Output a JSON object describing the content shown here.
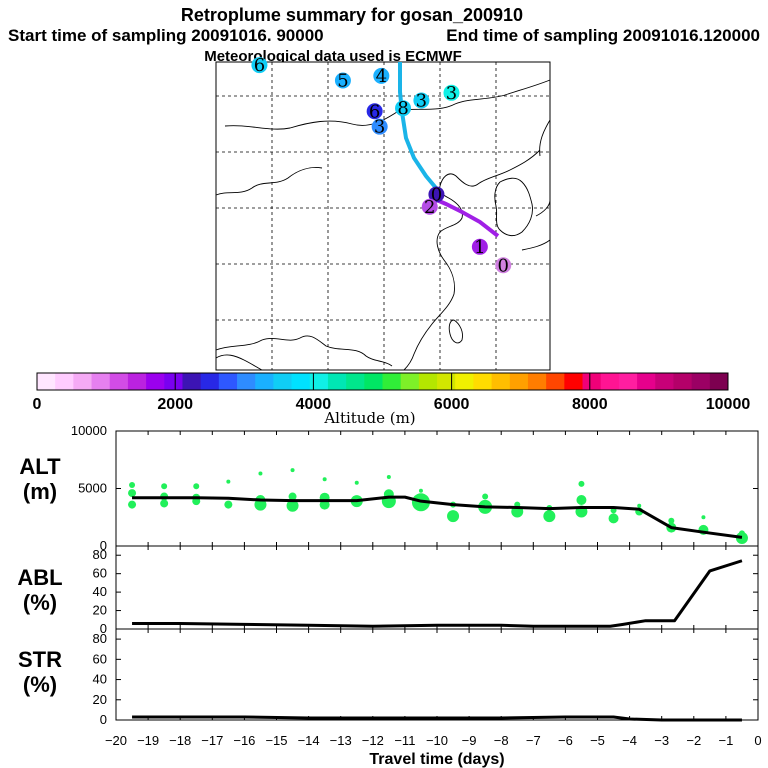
{
  "header": {
    "title": "Retroplume summary for gosan_200910",
    "start_time": "Start time of sampling 20091016. 90000",
    "end_time": "End time of sampling 20091016.120000",
    "met_data": "Meteorological data used is ECMWF"
  },
  "colorbar": {
    "colors": [
      "#ffe6ff",
      "#ffccff",
      "#f5aaf5",
      "#e680f0",
      "#d24ce6",
      "#bb22e0",
      "#9b00ee",
      "#7a00f0",
      "#3c14b4",
      "#2828e6",
      "#2e58ff",
      "#2e8cff",
      "#1ab0ff",
      "#10cdf5",
      "#00e1ff",
      "#10f0e6",
      "#00e6b4",
      "#00e68c",
      "#00e664",
      "#30ee38",
      "#7ef028",
      "#b4e600",
      "#d2e600",
      "#f0f000",
      "#ffdc00",
      "#ffbe00",
      "#ffa000",
      "#ff7d00",
      "#ff4600",
      "#ff0000",
      "#f00078",
      "#ff1493",
      "#ff1ea0",
      "#e6008c",
      "#c80078",
      "#b40069",
      "#9b0064",
      "#7d0050"
    ],
    "tick_labels": [
      "0",
      "2000",
      "4000",
      "6000",
      "8000",
      "10000"
    ],
    "tick_values": [
      0,
      2000,
      4000,
      6000,
      8000,
      10000
    ],
    "label": "Altitude (m)"
  },
  "map": {
    "track_upper_color": "#1ab4e8",
    "track_lower_color": "#a020e6",
    "markers": [
      {
        "label": "5",
        "lon": 0.38,
        "lat": 0.06,
        "color": "#1ab0ff"
      },
      {
        "label": "4",
        "lon": 0.495,
        "lat": 0.045,
        "color": "#1ab0ff"
      },
      {
        "label": "8",
        "lon": 0.56,
        "lat": 0.15,
        "color": "#10cdf5"
      },
      {
        "label": "3",
        "lon": 0.615,
        "lat": 0.125,
        "color": "#10cdf5"
      },
      {
        "label": "3",
        "lon": 0.705,
        "lat": 0.1,
        "color": "#10f0e6"
      },
      {
        "label": "6",
        "lon": 0.475,
        "lat": 0.16,
        "color": "#2828e6"
      },
      {
        "label": "3",
        "lon": 0.49,
        "lat": 0.21,
        "color": "#2e8cff"
      },
      {
        "label": "0",
        "lon": 0.66,
        "lat": 0.43,
        "color": "#3c14b4"
      },
      {
        "label": "2",
        "lon": 0.64,
        "lat": 0.47,
        "color": "#b44ce6"
      },
      {
        "label": "1",
        "lon": 0.79,
        "lat": 0.6,
        "color": "#a020e6"
      },
      {
        "label": "0",
        "lon": 0.86,
        "lat": 0.66,
        "color": "#d080e0"
      },
      {
        "label": "6",
        "lon": 0.13,
        "lat": 0.01,
        "color": "#10cdf5"
      }
    ]
  },
  "panels": {
    "alt": {
      "label_top": "ALT",
      "label_bottom": "(m)",
      "yticks": [
        "10000",
        "5000",
        "0"
      ],
      "ytick_values": [
        10000,
        5000,
        0
      ]
    },
    "abl": {
      "label_top": "ABL",
      "label_bottom": "(%)",
      "yticks": [
        "80",
        "60",
        "40",
        "20",
        "0"
      ],
      "ytick_values": [
        80,
        60,
        40,
        20,
        0
      ]
    },
    "str": {
      "label_top": "STR",
      "label_bottom": "(%)",
      "yticks": [
        "80",
        "60",
        "40",
        "20",
        "0"
      ],
      "ytick_values": [
        80,
        60,
        40,
        20,
        0
      ]
    }
  },
  "xaxis": {
    "label": "Travel time (days)",
    "tick_labels": [
      "−20",
      "−19",
      "−18",
      "−17",
      "−16",
      "−15",
      "−14",
      "−13",
      "−12",
      "−11",
      "−10",
      "−9",
      "−8",
      "−7",
      "−6",
      "−5",
      "−4",
      "−3",
      "−2",
      "−1",
      "0"
    ],
    "tick_values": [
      -20,
      -19,
      -18,
      -17,
      -16,
      -15,
      -14,
      -13,
      -12,
      -11,
      -10,
      -9,
      -8,
      -7,
      -6,
      -5,
      -4,
      -3,
      -2,
      -1,
      0
    ]
  },
  "chart_data": [
    {
      "type": "line",
      "title": "ALT",
      "ylabel": "ALT (m)",
      "xlabel": "Travel time (days)",
      "xlim": [
        -20,
        0
      ],
      "ylim": [
        0,
        10000
      ],
      "series": [
        {
          "name": "mean altitude",
          "x": [
            -19.5,
            -18.5,
            -17.5,
            -16.5,
            -15.5,
            -14.5,
            -13.5,
            -12.5,
            -11.5,
            -11,
            -10.5,
            -9.5,
            -8.5,
            -7.5,
            -6.5,
            -5.5,
            -4.5,
            -3.7,
            -2.7,
            -1.7,
            -0.5
          ],
          "y": [
            4200,
            4200,
            4200,
            4150,
            4000,
            3950,
            3950,
            3950,
            4250,
            4250,
            3900,
            3600,
            3400,
            3350,
            3250,
            3350,
            3350,
            3200,
            1600,
            1200,
            750
          ]
        }
      ],
      "scatter": {
        "name": "particle clusters",
        "x": [
          -19.5,
          -19.5,
          -19.5,
          -18.5,
          -18.5,
          -18.5,
          -17.5,
          -17.5,
          -17.5,
          -16.5,
          -16.5,
          -15.5,
          -15.5,
          -15.5,
          -14.5,
          -14.5,
          -14.5,
          -13.5,
          -13.5,
          -13.5,
          -12.5,
          -12.5,
          -11.5,
          -11.5,
          -11.5,
          -10.5,
          -10.5,
          -9.5,
          -9.5,
          -8.5,
          -8.5,
          -7.5,
          -7.5,
          -6.5,
          -6.5,
          -5.5,
          -5.5,
          -5.5,
          -4.5,
          -4.5,
          -3.7,
          -3.7,
          -2.7,
          -2.7,
          -1.7,
          -1.7,
          -0.5,
          -0.5
        ],
        "y": [
          5300,
          4600,
          3600,
          5200,
          4300,
          3700,
          5200,
          4200,
          3900,
          5600,
          3600,
          6300,
          4000,
          3600,
          6600,
          4300,
          3500,
          5800,
          4200,
          3600,
          5500,
          3900,
          6000,
          4500,
          3900,
          4800,
          3800,
          3600,
          2600,
          4300,
          3400,
          3600,
          3000,
          3300,
          2600,
          5400,
          4000,
          3000,
          3100,
          2400,
          3500,
          3000,
          2200,
          1600,
          2500,
          1400,
          1100,
          700
        ],
        "sizes": [
          3,
          4,
          4,
          3,
          4,
          4,
          3,
          4,
          4,
          2,
          4,
          2,
          5,
          6,
          2,
          4,
          6,
          2,
          5,
          5,
          2,
          6,
          2,
          5,
          7,
          2,
          9,
          3,
          6,
          3,
          7,
          3,
          6,
          3,
          6,
          3,
          5,
          6,
          3,
          5,
          2,
          4,
          3,
          5,
          2,
          5,
          3,
          6
        ],
        "color": "#21f05a"
      }
    },
    {
      "type": "line",
      "title": "ABL",
      "ylabel": "ABL (%)",
      "xlim": [
        -20,
        0
      ],
      "ylim": [
        0,
        90
      ],
      "series": [
        {
          "name": "ABL fraction",
          "x": [
            -19.5,
            -18,
            -16,
            -14,
            -12,
            -10,
            -8,
            -7,
            -6,
            -5,
            -4.6,
            -4.2,
            -3.5,
            -2.6,
            -1.5,
            -0.5
          ],
          "y": [
            6,
            6,
            5,
            4,
            3,
            4,
            4,
            3,
            3,
            3,
            3,
            5,
            9,
            9,
            63,
            74
          ]
        }
      ]
    },
    {
      "type": "line",
      "title": "STR",
      "ylabel": "STR (%)",
      "xlim": [
        -20,
        0
      ],
      "ylim": [
        0,
        90
      ],
      "series": [
        {
          "name": "stratospheric fraction",
          "x": [
            -19.5,
            -18,
            -16,
            -14,
            -12,
            -10,
            -8,
            -6,
            -5,
            -4.5,
            -4,
            -3,
            -2,
            -1,
            -0.5
          ],
          "y": [
            3,
            3,
            3,
            2,
            2,
            2,
            2,
            3,
            3,
            3,
            1,
            0,
            0,
            0,
            0
          ]
        }
      ]
    }
  ]
}
